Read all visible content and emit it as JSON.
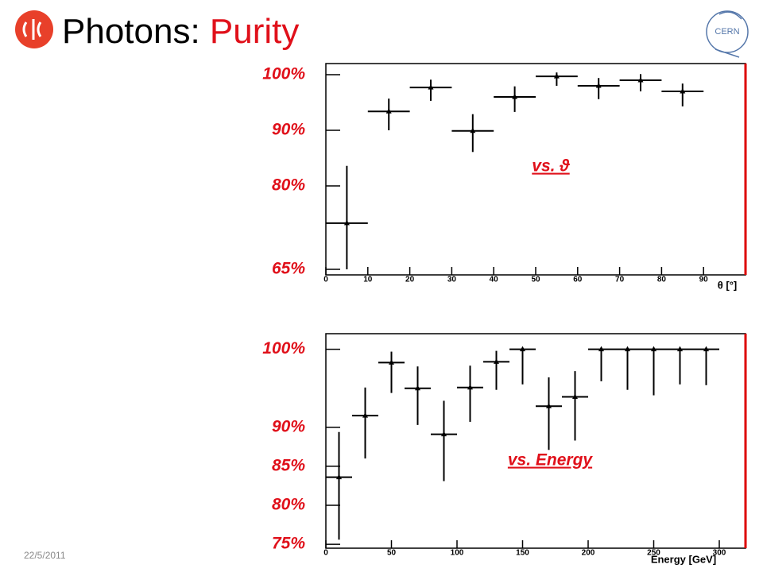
{
  "header": {
    "title": "Photons:",
    "title_highlight": "Purity",
    "logo_text": "CERN",
    "date": "22/5/2011"
  },
  "chart_data": [
    {
      "type": "errorbar",
      "annotation": "vs. ϑ",
      "xlabel": "θ [°]",
      "x": [
        5,
        15,
        25,
        35,
        45,
        55,
        65,
        75,
        85
      ],
      "xerr": 5,
      "values": [
        73.3,
        93.4,
        97.7,
        89.9,
        96,
        99.7,
        98,
        99,
        97
      ],
      "errors_low": [
        8.3,
        3.4,
        2.4,
        3.8,
        2.7,
        1.7,
        2.4,
        2,
        2.7
      ],
      "errors_high": [
        10.3,
        2.3,
        1.4,
        3,
        1.9,
        0.7,
        1.4,
        1.1,
        1.4
      ],
      "xlim": [
        0,
        100
      ],
      "xticks": [
        0,
        10,
        20,
        30,
        40,
        50,
        60,
        70,
        80,
        90
      ],
      "ylim": [
        64,
        102
      ],
      "yticks": [
        {
          "value": 65,
          "label": "65%"
        },
        {
          "value": 80,
          "label": "80%"
        },
        {
          "value": 90,
          "label": "90%"
        },
        {
          "value": 100,
          "label": "100%"
        }
      ],
      "color": "#000000",
      "ytick_color": "#e0101a"
    },
    {
      "type": "errorbar",
      "annotation": "vs. Energy",
      "xlabel": "Energy [GeV]",
      "x": [
        10,
        30,
        50,
        70,
        90,
        110,
        130,
        150,
        170,
        190,
        210,
        230,
        250,
        270,
        290
      ],
      "xerr": 10,
      "values": [
        83.6,
        91.5,
        98.3,
        95,
        89.1,
        95.1,
        98.4,
        100,
        92.7,
        93.9,
        100,
        100,
        100,
        100,
        100
      ],
      "errors_low": [
        8,
        5.5,
        3.9,
        4.7,
        6,
        4.4,
        3.6,
        4.5,
        5.6,
        5.6,
        4.1,
        5.2,
        5.9,
        4.5,
        4.6
      ],
      "errors_high": [
        5.8,
        3.6,
        1.4,
        2.8,
        4.3,
        2.8,
        1.4,
        0,
        3.7,
        3.3,
        0,
        0,
        0,
        0,
        0
      ],
      "xlim": [
        0,
        320
      ],
      "xticks": [
        0,
        50,
        100,
        150,
        200,
        250,
        300
      ],
      "ylim": [
        74.5,
        102
      ],
      "yticks": [
        {
          "value": 75,
          "label": "75%"
        },
        {
          "value": 80,
          "label": "80%"
        },
        {
          "value": 85,
          "label": "85%"
        },
        {
          "value": 90,
          "label": "90%"
        },
        {
          "value": 100,
          "label": "100%"
        }
      ],
      "color": "#000000",
      "ytick_color": "#e0101a"
    }
  ]
}
